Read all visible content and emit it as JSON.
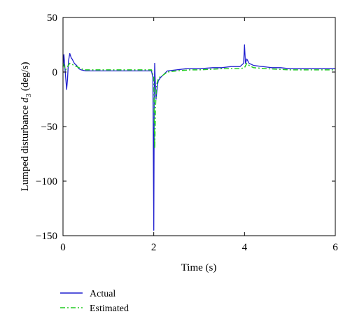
{
  "chart_data": {
    "type": "line",
    "title": "",
    "xlabel": "Time (s)",
    "ylabel_prefix": "Lumped disturbance ",
    "ylabel_symbol": "d",
    "ylabel_subscript": "3",
    "ylabel_suffix": " (deg/s)",
    "xlim": [
      0,
      6
    ],
    "ylim": [
      -150,
      50
    ],
    "xticks": [
      0,
      2,
      4,
      6
    ],
    "yticks": [
      50,
      0,
      -50,
      -100,
      -150
    ],
    "xtick_labels": [
      "0",
      "2",
      "4",
      "6"
    ],
    "ytick_labels": [
      "50",
      "0",
      "−50",
      "−100",
      "−150"
    ],
    "grid": false,
    "legend_position": "bottom-left, below axes",
    "series": [
      {
        "name": "Actual",
        "color": "#1f1fcf",
        "style": "solid",
        "x": [
          0,
          0.02,
          0.05,
          0.08,
          0.1,
          0.12,
          0.15,
          0.18,
          0.2,
          0.25,
          0.3,
          0.35,
          0.4,
          0.5,
          0.6,
          0.8,
          1.0,
          1.2,
          1.4,
          1.6,
          1.8,
          1.95,
          1.98,
          2.0,
          2.01,
          2.02,
          2.03,
          2.05,
          2.08,
          2.1,
          2.15,
          2.2,
          2.3,
          2.5,
          2.7,
          3.0,
          3.3,
          3.5,
          3.7,
          3.9,
          3.98,
          4.0,
          4.02,
          4.05,
          4.1,
          4.2,
          4.4,
          4.6,
          4.8,
          5.0,
          5.2,
          5.4,
          5.6,
          5.8,
          6.0
        ],
        "y": [
          5,
          16,
          0,
          -16,
          -6,
          10,
          17,
          13,
          12,
          8,
          6,
          3,
          2,
          1,
          1,
          1,
          1,
          1,
          1,
          1,
          1,
          1,
          -5,
          -145,
          -30,
          8,
          -5,
          -25,
          -12,
          -8,
          -5,
          -3,
          1,
          2,
          3,
          3,
          4,
          4,
          5,
          5,
          8,
          25,
          8,
          12,
          8,
          6,
          5,
          4,
          4,
          3,
          3,
          3,
          3,
          3,
          3
        ]
      },
      {
        "name": "Estimated",
        "color": "#22cc22",
        "style": "dashdot",
        "x": [
          0,
          0.03,
          0.06,
          0.1,
          0.15,
          0.2,
          0.3,
          0.4,
          0.5,
          0.7,
          1.0,
          1.5,
          1.95,
          2.0,
          2.02,
          2.04,
          2.06,
          2.1,
          2.15,
          2.2,
          2.3,
          2.5,
          2.8,
          3.0,
          3.5,
          3.9,
          4.0,
          4.05,
          4.1,
          4.2,
          4.5,
          5.0,
          5.5,
          6.0
        ],
        "y": [
          8,
          5,
          2,
          5,
          8,
          7,
          5,
          3,
          2,
          2,
          2,
          2,
          2,
          -5,
          -70,
          -30,
          -12,
          -6,
          -4,
          -3,
          0,
          1,
          2,
          2,
          3,
          3,
          4,
          8,
          6,
          4,
          3,
          2,
          2,
          2
        ]
      }
    ]
  }
}
